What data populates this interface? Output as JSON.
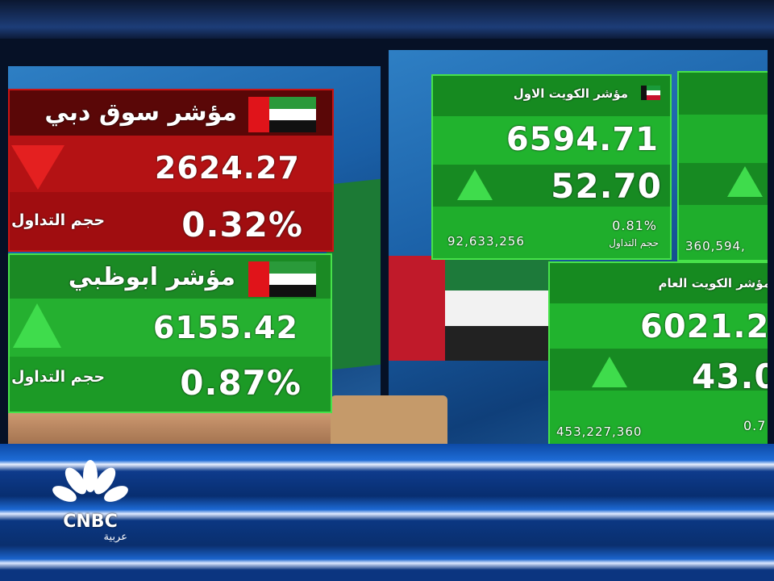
{
  "dubai": {
    "title": "مؤشر سوق دبي",
    "value": "2624.27",
    "volume_label": "حجم التداول",
    "change_pct": "0.32%",
    "direction": "down",
    "color": "#b01010"
  },
  "abu_dhabi": {
    "title": "مؤشر ابوظبي",
    "value": "6155.42",
    "volume_label": "حجم التداول",
    "change_pct": "0.87%",
    "direction": "up",
    "color": "#1fa42a"
  },
  "kuwait_first": {
    "title": "مؤشر الكويت الاول",
    "value": "6594.71",
    "change": "52.70",
    "change_pct": "0.81%",
    "volume": "92,633,256",
    "volume_label": "حجم التداول",
    "direction": "up"
  },
  "partial_card": {
    "volume": "360,594,",
    "direction": "up"
  },
  "kuwait_general": {
    "title": "مؤشر الكويت العام",
    "value": "6021.2",
    "change": "43.0",
    "change_pct": "0.7",
    "volume": "453,227,360",
    "direction": "up"
  },
  "logo": {
    "brand": "CNBC",
    "sub": "عربية"
  }
}
